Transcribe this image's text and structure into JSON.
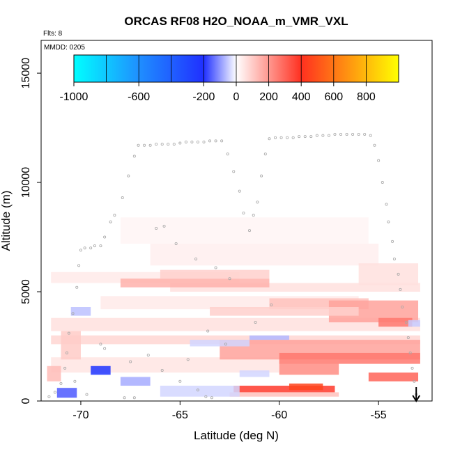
{
  "chart_data": {
    "type": "heatmap",
    "title": "ORCAS RF08 H2O_NOAA_m_VMR_VXL",
    "flights_label": "Flts: 8",
    "date_label": "MMDD: 0205",
    "xlabel": "Latitude (deg N)",
    "ylabel": "Altitude (m)",
    "xlim": [
      -72,
      -52.3
    ],
    "ylim": [
      0,
      16500
    ],
    "xticks": [
      -70,
      -65,
      -60,
      -55
    ],
    "yticks": [
      0,
      5000,
      10000,
      15000
    ],
    "colorbar": {
      "ticks": [
        -1000,
        -600,
        -200,
        0,
        200,
        400,
        600,
        800
      ],
      "range": [
        -1000,
        1000
      ],
      "colors": [
        "#00ffff",
        "#1f8fff",
        "#2030ff",
        "#ffffff",
        "#ff3020",
        "#ffff00"
      ]
    },
    "arrow_marker_lat": -53.1,
    "heat_cells": [
      {
        "lat0": -71.5,
        "lat1": -62.0,
        "alt0": 5400,
        "alt1": 5900,
        "value": 40
      },
      {
        "lat0": -71.5,
        "lat1": -52.9,
        "alt0": 3200,
        "alt1": 3800,
        "value": 60
      },
      {
        "lat0": -71.5,
        "lat1": -52.9,
        "alt0": 2600,
        "alt1": 3000,
        "value": 80
      },
      {
        "lat0": -71.5,
        "lat1": -60.0,
        "alt0": 1300,
        "alt1": 2000,
        "value": 50
      },
      {
        "lat0": -63.0,
        "lat1": -52.9,
        "alt0": 1900,
        "alt1": 2800,
        "value": 180
      },
      {
        "lat0": -60.0,
        "lat1": -52.9,
        "alt0": 1700,
        "alt1": 2200,
        "value": 260
      },
      {
        "lat0": -60.0,
        "lat1": -57.0,
        "alt0": 1200,
        "alt1": 1900,
        "value": 220
      },
      {
        "lat0": -55.5,
        "lat1": -53.0,
        "alt0": 900,
        "alt1": 1300,
        "value": 300
      },
      {
        "lat0": -68.0,
        "lat1": -55.5,
        "alt0": 7200,
        "alt1": 8400,
        "value": 20
      },
      {
        "lat0": -66.5,
        "lat1": -55.0,
        "alt0": 6200,
        "alt1": 7200,
        "value": 30
      },
      {
        "lat0": -69.0,
        "lat1": -56.0,
        "alt0": 4200,
        "alt1": 4800,
        "value": 40
      },
      {
        "lat0": -65.5,
        "lat1": -52.9,
        "alt0": 5000,
        "alt1": 5400,
        "value": 60
      },
      {
        "lat0": -68.0,
        "lat1": -60.5,
        "alt0": 5200,
        "alt1": 5600,
        "value": 150
      },
      {
        "lat0": -66.0,
        "lat1": -60.5,
        "alt0": 5600,
        "alt1": 6000,
        "value": 90
      },
      {
        "lat0": -56.0,
        "lat1": -53.0,
        "alt0": 5300,
        "alt1": 6300,
        "value": 60
      },
      {
        "lat0": -60.5,
        "lat1": -55.5,
        "alt0": 4200,
        "alt1": 4700,
        "value": 120
      },
      {
        "lat0": -57.5,
        "lat1": -53.0,
        "alt0": 3600,
        "alt1": 4600,
        "value": 180
      },
      {
        "lat0": -55.0,
        "lat1": -53.3,
        "alt0": 3400,
        "alt1": 3800,
        "value": 260
      },
      {
        "lat0": -63.5,
        "lat1": -56.0,
        "alt0": 3900,
        "alt1": 4300,
        "value": 90
      },
      {
        "lat0": -62.3,
        "lat1": -57.2,
        "alt0": 400,
        "alt1": 700,
        "value": 380
      },
      {
        "lat0": -59.5,
        "lat1": -57.8,
        "alt0": 500,
        "alt1": 800,
        "value": 460
      },
      {
        "lat0": -62.5,
        "lat1": -57.0,
        "alt0": 200,
        "alt1": 400,
        "value": 120
      },
      {
        "lat0": -71.0,
        "lat1": -70.0,
        "alt0": 1900,
        "alt1": 3200,
        "value": 100
      },
      {
        "lat0": -71.7,
        "lat1": -71.0,
        "alt0": 900,
        "alt1": 1600,
        "value": 130
      },
      {
        "lat0": -61.5,
        "lat1": -59.5,
        "alt0": 2800,
        "alt1": 3000,
        "value": -70
      },
      {
        "lat0": -64.5,
        "lat1": -61.5,
        "alt0": 2500,
        "alt1": 2800,
        "value": -40
      },
      {
        "lat0": -66.0,
        "lat1": -62.0,
        "alt0": 200,
        "alt1": 700,
        "value": -40
      },
      {
        "lat0": -62.0,
        "lat1": -60.5,
        "alt0": 1100,
        "alt1": 1400,
        "value": -40
      },
      {
        "lat0": -71.2,
        "lat1": -70.2,
        "alt0": 150,
        "alt1": 600,
        "value": -160
      },
      {
        "lat0": -69.5,
        "lat1": -68.5,
        "alt0": 1200,
        "alt1": 1600,
        "value": -220
      },
      {
        "lat0": -68.0,
        "lat1": -66.5,
        "alt0": 700,
        "alt1": 1100,
        "value": -80
      },
      {
        "lat0": -70.5,
        "lat1": -69.5,
        "alt0": 3900,
        "alt1": 4300,
        "value": -60
      },
      {
        "lat0": -53.5,
        "lat1": -52.9,
        "alt0": 3400,
        "alt1": 3700,
        "value": -50
      }
    ],
    "flight_track_points": [
      [
        -71.6,
        200
      ],
      [
        -71.3,
        400
      ],
      [
        -71.0,
        800
      ],
      [
        -70.8,
        1500
      ],
      [
        -70.7,
        2200
      ],
      [
        -70.6,
        3100
      ],
      [
        -70.4,
        4000
      ],
      [
        -70.2,
        5200
      ],
      [
        -70.1,
        6200
      ],
      [
        -70.0,
        6900
      ],
      [
        -69.8,
        7000
      ],
      [
        -69.5,
        7000
      ],
      [
        -69.3,
        7100
      ],
      [
        -69.0,
        7100
      ],
      [
        -68.8,
        7500
      ],
      [
        -68.5,
        8200
      ],
      [
        -68.3,
        8500
      ],
      [
        -67.9,
        9300
      ],
      [
        -67.6,
        10300
      ],
      [
        -67.3,
        11200
      ],
      [
        -67.1,
        11700
      ],
      [
        -66.8,
        11700
      ],
      [
        -66.5,
        11700
      ],
      [
        -66.2,
        11750
      ],
      [
        -65.9,
        11750
      ],
      [
        -65.6,
        11750
      ],
      [
        -65.3,
        11750
      ],
      [
        -65.0,
        11800
      ],
      [
        -64.7,
        11850
      ],
      [
        -64.4,
        11850
      ],
      [
        -64.1,
        11850
      ],
      [
        -63.8,
        11850
      ],
      [
        -63.5,
        11900
      ],
      [
        -63.2,
        11900
      ],
      [
        -62.9,
        11900
      ],
      [
        -62.6,
        11300
      ],
      [
        -62.3,
        10500
      ],
      [
        -62.0,
        9600
      ],
      [
        -61.8,
        8600
      ],
      [
        -61.5,
        7800
      ],
      [
        -61.3,
        8500
      ],
      [
        -61.1,
        9100
      ],
      [
        -60.9,
        10300
      ],
      [
        -60.7,
        11300
      ],
      [
        -60.5,
        12000
      ],
      [
        -60.2,
        12050
      ],
      [
        -59.9,
        12050
      ],
      [
        -59.6,
        12050
      ],
      [
        -59.3,
        12050
      ],
      [
        -59.0,
        12100
      ],
      [
        -58.7,
        12100
      ],
      [
        -58.4,
        12100
      ],
      [
        -58.1,
        12150
      ],
      [
        -57.8,
        12150
      ],
      [
        -57.5,
        12150
      ],
      [
        -57.2,
        12200
      ],
      [
        -56.9,
        12200
      ],
      [
        -56.6,
        12200
      ],
      [
        -56.3,
        12200
      ],
      [
        -56.0,
        12200
      ],
      [
        -55.7,
        12200
      ],
      [
        -55.4,
        12150
      ],
      [
        -55.2,
        11700
      ],
      [
        -55.0,
        11000
      ],
      [
        -54.8,
        10000
      ],
      [
        -54.6,
        9000
      ],
      [
        -54.5,
        8200
      ],
      [
        -54.3,
        7300
      ],
      [
        -54.2,
        6500
      ],
      [
        -54.0,
        5800
      ],
      [
        -53.9,
        5100
      ],
      [
        -53.8,
        4300
      ],
      [
        -53.6,
        3600
      ],
      [
        -53.5,
        2900
      ],
      [
        -53.4,
        2200
      ],
      [
        -53.3,
        1500
      ],
      [
        -53.2,
        900
      ],
      [
        -53.1,
        300
      ],
      [
        -66.2,
        7900
      ],
      [
        -65.8,
        8000
      ],
      [
        -65.2,
        7200
      ],
      [
        -64.2,
        6500
      ],
      [
        -63.2,
        6100
      ],
      [
        -62.5,
        5600
      ],
      [
        -68.8,
        2400
      ],
      [
        -67.5,
        1800
      ],
      [
        -66.6,
        2100
      ],
      [
        -65.9,
        1400
      ],
      [
        -65.0,
        900
      ],
      [
        -64.1,
        500
      ],
      [
        -63.4,
        150
      ],
      [
        -63.7,
        200
      ],
      [
        -69.7,
        300
      ],
      [
        -70.3,
        900
      ],
      [
        -69.0,
        2600
      ],
      [
        -67.8,
        150
      ],
      [
        -67.3,
        150
      ],
      [
        -64.6,
        1900
      ],
      [
        -63.6,
        3200
      ],
      [
        -62.7,
        2600
      ],
      [
        -61.2,
        3600
      ],
      [
        -60.4,
        4400
      ]
    ]
  }
}
